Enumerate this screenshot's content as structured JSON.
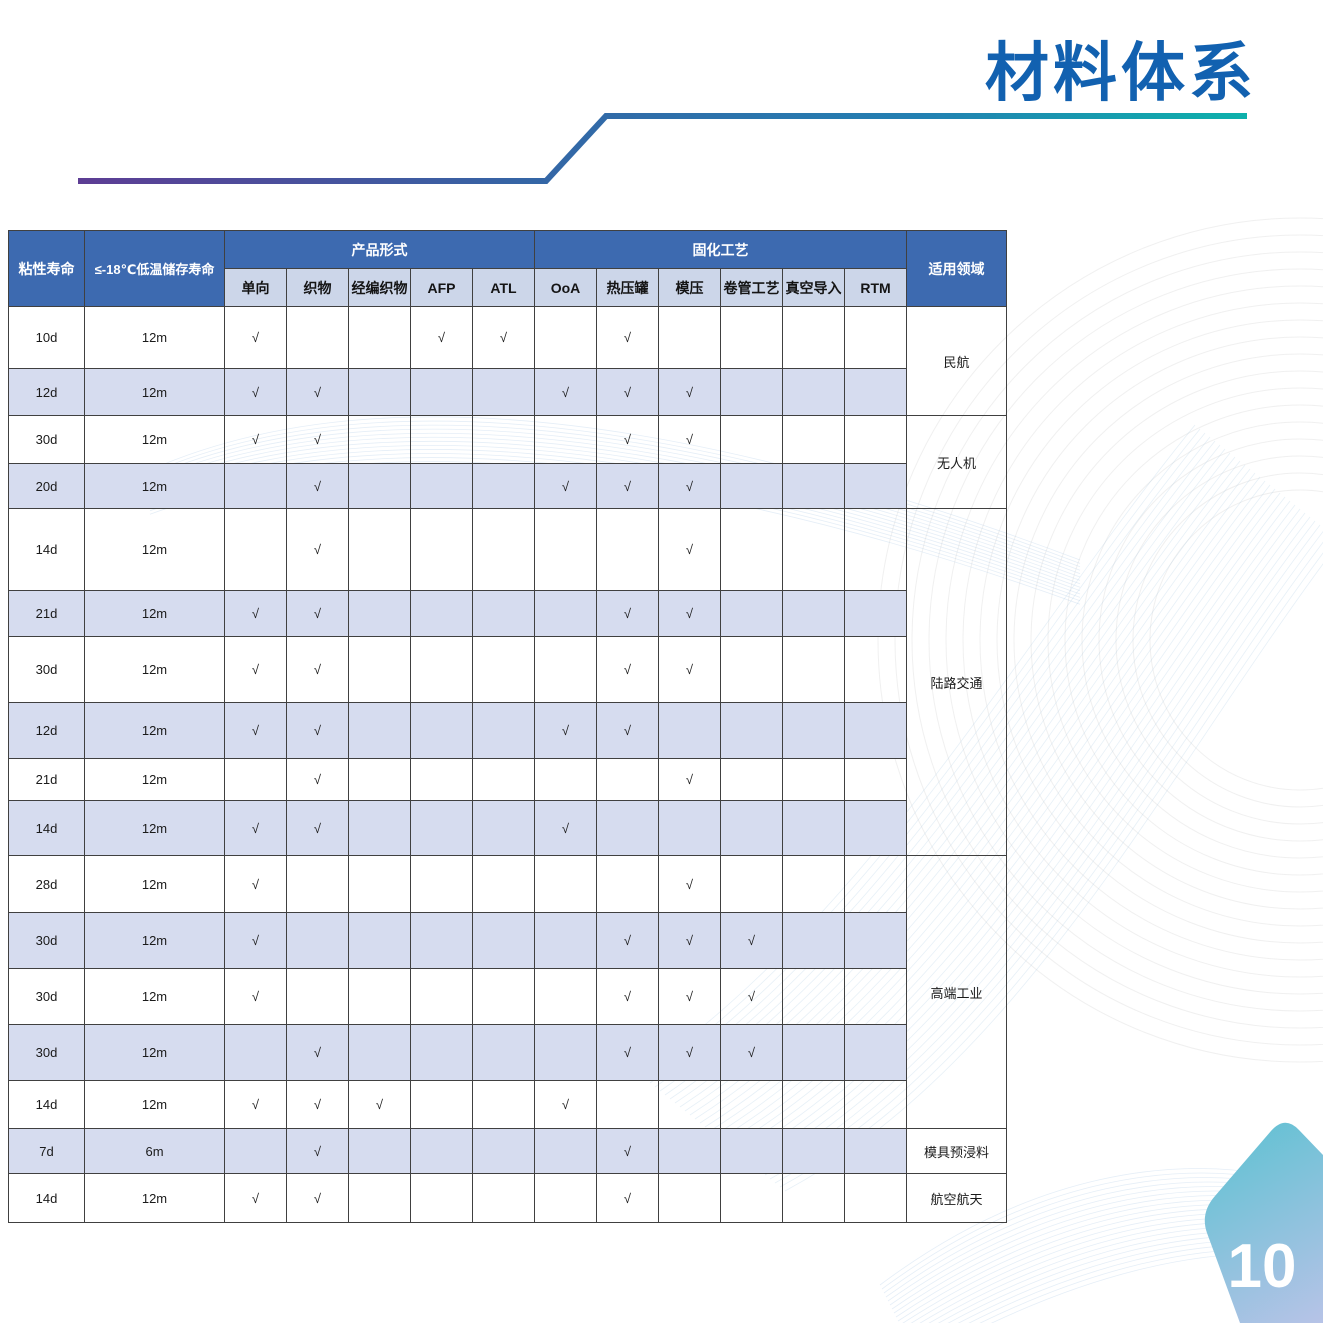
{
  "page": {
    "title": "材料体系",
    "page_number": "10"
  },
  "table": {
    "headers": {
      "viscous_life": "粘性寿命",
      "storage_life": "≤-18℃低温储存寿命",
      "product_form_group": "产品形式",
      "curing_group": "固化工艺",
      "application": "适用领域",
      "product_forms": [
        "单向",
        "织物",
        "经编织物",
        "AFP",
        "ATL"
      ],
      "curing_processes": [
        "OoA",
        "热压罐",
        "模压",
        "卷管工艺",
        "真空导入",
        "RTM"
      ]
    },
    "check_mark": "√",
    "rows": [
      {
        "viscous": "10d",
        "storage": "12m",
        "checks": [
          1,
          0,
          0,
          1,
          1,
          0,
          1,
          0,
          0,
          0,
          0
        ]
      },
      {
        "viscous": "12d",
        "storage": "12m",
        "checks": [
          1,
          1,
          0,
          0,
          0,
          1,
          1,
          1,
          0,
          0,
          0
        ]
      },
      {
        "viscous": "30d",
        "storage": "12m",
        "checks": [
          1,
          1,
          0,
          0,
          0,
          0,
          1,
          1,
          0,
          0,
          0
        ]
      },
      {
        "viscous": "20d",
        "storage": "12m",
        "checks": [
          0,
          1,
          0,
          0,
          0,
          1,
          1,
          1,
          0,
          0,
          0
        ]
      },
      {
        "viscous": "14d",
        "storage": "12m",
        "checks": [
          0,
          1,
          0,
          0,
          0,
          0,
          0,
          1,
          0,
          0,
          0
        ]
      },
      {
        "viscous": "21d",
        "storage": "12m",
        "checks": [
          1,
          1,
          0,
          0,
          0,
          0,
          1,
          1,
          0,
          0,
          0
        ]
      },
      {
        "viscous": "30d",
        "storage": "12m",
        "checks": [
          1,
          1,
          0,
          0,
          0,
          0,
          1,
          1,
          0,
          0,
          0
        ]
      },
      {
        "viscous": "12d",
        "storage": "12m",
        "checks": [
          1,
          1,
          0,
          0,
          0,
          1,
          1,
          0,
          0,
          0,
          0
        ]
      },
      {
        "viscous": "21d",
        "storage": "12m",
        "checks": [
          0,
          1,
          0,
          0,
          0,
          0,
          0,
          1,
          0,
          0,
          0
        ]
      },
      {
        "viscous": "14d",
        "storage": "12m",
        "checks": [
          1,
          1,
          0,
          0,
          0,
          1,
          0,
          0,
          0,
          0,
          0
        ]
      },
      {
        "viscous": "28d",
        "storage": "12m",
        "checks": [
          1,
          0,
          0,
          0,
          0,
          0,
          0,
          1,
          0,
          0,
          0
        ]
      },
      {
        "viscous": "30d",
        "storage": "12m",
        "checks": [
          1,
          0,
          0,
          0,
          0,
          0,
          1,
          1,
          1,
          0,
          0
        ]
      },
      {
        "viscous": "30d",
        "storage": "12m",
        "checks": [
          1,
          0,
          0,
          0,
          0,
          0,
          1,
          1,
          1,
          0,
          0
        ]
      },
      {
        "viscous": "30d",
        "storage": "12m",
        "checks": [
          0,
          1,
          0,
          0,
          0,
          0,
          1,
          1,
          1,
          0,
          0
        ]
      },
      {
        "viscous": "14d",
        "storage": "12m",
        "checks": [
          1,
          1,
          1,
          0,
          0,
          1,
          0,
          0,
          0,
          0,
          0
        ]
      },
      {
        "viscous": "7d",
        "storage": "6m",
        "checks": [
          0,
          1,
          0,
          0,
          0,
          0,
          1,
          0,
          0,
          0,
          0
        ]
      },
      {
        "viscous": "14d",
        "storage": "12m",
        "checks": [
          1,
          1,
          0,
          0,
          0,
          0,
          1,
          0,
          0,
          0,
          0
        ]
      }
    ],
    "applications": [
      {
        "label": "民航",
        "row_start": 0,
        "row_span": 2
      },
      {
        "label": "无人机",
        "row_start": 2,
        "row_span": 2
      },
      {
        "label": "陆路交通",
        "row_start": 4,
        "row_span": 6
      },
      {
        "label": "高端工业",
        "row_start": 10,
        "row_span": 5
      },
      {
        "label": "模具预浸料",
        "row_start": 15,
        "row_span": 1
      },
      {
        "label": "航空航天",
        "row_start": 16,
        "row_span": 1
      }
    ]
  },
  "colors": {
    "title_blue": "#1261b0",
    "header_blue": "#3d6ab0",
    "subheader_blue": "#ccd6e9",
    "row_stripe": "#d6dcef",
    "table_border": "#404040",
    "line_purple": "#5d3d94",
    "line_blue": "#2e6da8",
    "line_teal": "#0db1ab",
    "badge_teal": "#5ec1d2",
    "badge_lavender": "#b7c3e7",
    "wave_blue": "#aac8e4"
  }
}
